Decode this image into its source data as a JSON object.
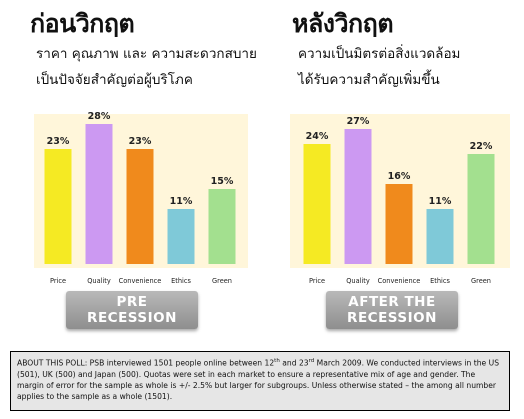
{
  "colors": {
    "price": "#f5ea23",
    "quality": "#cc99f2",
    "convenience": "#f08a1c",
    "ethics": "#7fc9d8",
    "green": "#a3e08f",
    "background_band": "#fff6da"
  },
  "panels": [
    {
      "heading": "ก่อนวิกฤต",
      "subtitle_line1": "ราคา คุณภาพ และ ความสะดวกสบาย",
      "subtitle_line2": "เป็นปัจจัยสำคัญต่อผู้บริโภค",
      "badge_line1": "PRE",
      "badge_line2": "RECESSION"
    },
    {
      "heading": "หลังวิกฤต",
      "subtitle_line1": "ความเป็นมิตรต่อสิ่งแวดล้อม",
      "subtitle_line2": "ได้รับความสำคัญเพิ่มขึ้น",
      "badge_line1": "AFTER THE",
      "badge_line2": "RECESSION"
    }
  ],
  "chart_data": [
    {
      "type": "bar",
      "categories": [
        "Price",
        "Quality",
        "Convenience",
        "Ethics",
        "Green"
      ],
      "values": [
        23,
        28,
        23,
        11,
        15
      ],
      "data_labels": [
        "23%",
        "28%",
        "23%",
        "11%",
        "15%"
      ],
      "ylim": [
        0,
        30
      ],
      "grid": false,
      "legend": "none"
    },
    {
      "type": "bar",
      "categories": [
        "Price",
        "Quality",
        "Convenience",
        "Ethics",
        "Green"
      ],
      "values": [
        24,
        27,
        16,
        11,
        22
      ],
      "data_labels": [
        "24%",
        "27%",
        "16%",
        "11%",
        "22%"
      ],
      "ylim": [
        0,
        30
      ],
      "grid": false,
      "legend": "none"
    }
  ],
  "poll": {
    "text": "ABOUT THIS POLL: PSB interviewed 1501 people online between 12th and 23rd March 2009. We conducted interviews in the US (501), UK (500) and Japan (500). Quotas were set in each market to ensure a representative mix of age and gender. The margin of error for the sample as whole is +/- 2.5%  but larger for subgroups. Unless otherwise stated – the among all number applies to the sample as a whole (1501)."
  }
}
